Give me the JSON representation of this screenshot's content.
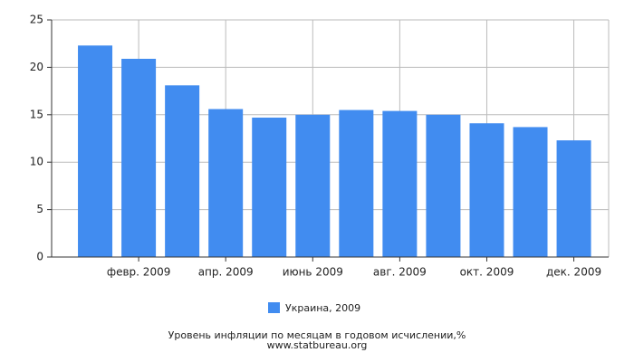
{
  "chart_data": {
    "type": "bar",
    "categories": [
      null,
      "февр. 2009",
      null,
      "апр. 2009",
      null,
      "июнь 2009",
      null,
      "авг. 2009",
      null,
      "окт. 2009",
      null,
      "дек. 2009"
    ],
    "series": [
      {
        "name": "Украина, 2009",
        "color": "#418cf0",
        "values": [
          22.3,
          20.9,
          18.1,
          15.6,
          14.7,
          15.0,
          15.5,
          15.4,
          15.0,
          14.1,
          13.7,
          12.3
        ]
      }
    ],
    "ylim": [
      0,
      25
    ],
    "yticks": [
      0,
      5,
      10,
      15,
      20,
      25
    ],
    "grid": true,
    "footer": [
      "Уровень инфляции по месяцам в годовом исчислении,%",
      "www.statbureau.org"
    ]
  }
}
